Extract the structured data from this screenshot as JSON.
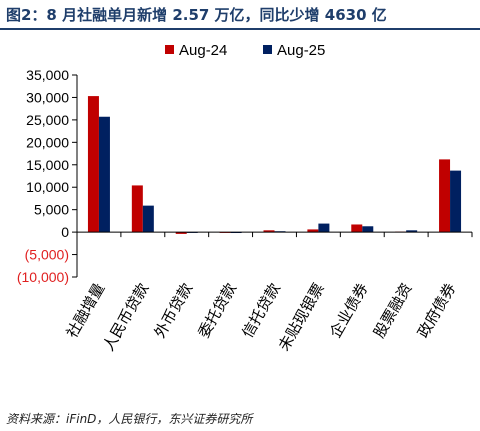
{
  "header": {
    "title": "图2：8 月社融单月新增 2.57 万亿，同比少增 4630 亿"
  },
  "footer": {
    "source": "资料来源：iFinD，人民银行，东兴证券研究所"
  },
  "colors": {
    "title": "#1f3e6b",
    "negative_tick": "#e02020",
    "series": [
      "#c00000",
      "#002060"
    ]
  },
  "chart_data": {
    "type": "bar",
    "categories": [
      "社融增量",
      "人民币贷款",
      "外币贷款",
      "委托贷款",
      "信托贷款",
      "未贴现银票",
      "企业债券",
      "股票融资",
      "政府债券"
    ],
    "series": [
      {
        "name": "Aug-24",
        "values": [
          30300,
          10400,
          -400,
          -100,
          400,
          600,
          1700,
          100,
          16200
        ]
      },
      {
        "name": "Aug-25",
        "values": [
          25700,
          5900,
          -100,
          -200,
          200,
          1900,
          1300,
          400,
          13700
        ]
      }
    ],
    "ylim": [
      -10000,
      35000
    ],
    "yticks": [
      35000,
      30000,
      25000,
      20000,
      15000,
      10000,
      5000,
      0,
      -5000,
      -10000
    ],
    "ytick_labels": [
      "35,000",
      "30,000",
      "25,000",
      "20,000",
      "15,000",
      "10,000",
      "5,000",
      "0",
      "(5,000)",
      "(10,000)"
    ],
    "legend_position": "top-center",
    "grid": false,
    "title": "",
    "xlabel": "",
    "ylabel": ""
  }
}
